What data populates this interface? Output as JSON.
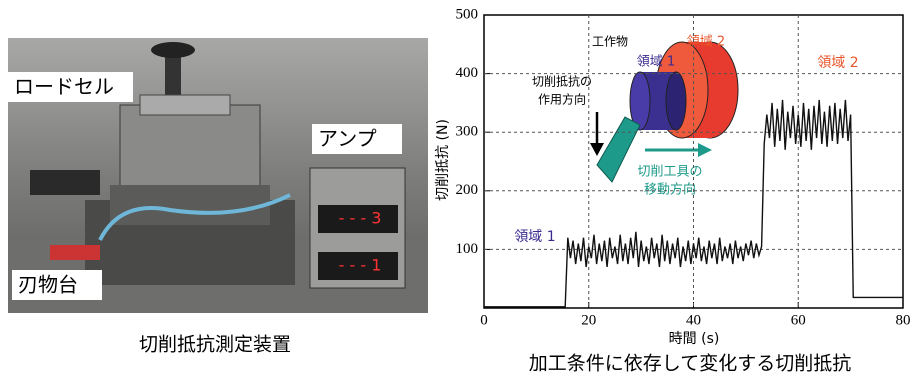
{
  "photo_panel": {
    "labels": [
      "ロードセル",
      "アンプ",
      "刃物台"
    ],
    "caption": "切削抵抗測定装置"
  },
  "chart_data": {
    "type": "line",
    "x_label": "時間 (s)",
    "y_label": "切削抵抗 (N)",
    "caption": "加工条件に依存して変化する切削抵抗",
    "annotations": [
      "領域 1",
      "領域 2",
      "工作物",
      "領域 1",
      "領域 2",
      "切削抵抗の",
      "作用方向",
      "切削工具の",
      "移動方向"
    ],
    "xlim": [
      0,
      80
    ],
    "xticks": [
      0,
      20,
      40,
      60,
      80
    ],
    "ylim": [
      0,
      500
    ],
    "yticks": [
      100,
      200,
      300,
      400,
      500
    ],
    "grid": true,
    "x": [
      0,
      15.5,
      16,
      16.5,
      17,
      17.5,
      18,
      18.5,
      19,
      19.5,
      20,
      20.5,
      21,
      21.5,
      22,
      22.5,
      23,
      23.5,
      24,
      24.5,
      25,
      25.5,
      26,
      26.5,
      27,
      27.5,
      28,
      28.5,
      29,
      29.5,
      30,
      30.5,
      31,
      31.5,
      32,
      32.5,
      33,
      33.5,
      34,
      34.5,
      35,
      35.5,
      36,
      36.5,
      37,
      37.5,
      38,
      38.5,
      39,
      39.5,
      40,
      40.5,
      41,
      41.5,
      42,
      42.5,
      43,
      43.5,
      44,
      44.5,
      45,
      45.5,
      46,
      46.5,
      47,
      47.5,
      48,
      48.5,
      49,
      49.5,
      50,
      50.5,
      51,
      51.5,
      52,
      52.5,
      53,
      53.5,
      54,
      54.5,
      55,
      55.5,
      56,
      56.5,
      57,
      57.5,
      58,
      58.5,
      59,
      59.5,
      60,
      60.5,
      61,
      61.5,
      62,
      62.5,
      63,
      63.5,
      64,
      64.5,
      65,
      65.5,
      66,
      66.5,
      67,
      67.5,
      68,
      68.5,
      69,
      69.5,
      70,
      70.5,
      80
    ],
    "series": [
      {
        "color": "#111111",
        "values": [
          2,
          2,
          120,
          85,
          115,
          75,
          110,
          80,
          120,
          70,
          105,
          85,
          125,
          75,
          110,
          80,
          115,
          70,
          120,
          85,
          105,
          75,
          125,
          80,
          110,
          75,
          120,
          85,
          130,
          70,
          115,
          80,
          105,
          75,
          120,
          85,
          110,
          70,
          125,
          80,
          115,
          75,
          110,
          85,
          120,
          70,
          105,
          80,
          115,
          75,
          110,
          85,
          120,
          80,
          105,
          75,
          115,
          85,
          110,
          75,
          120,
          80,
          105,
          85,
          110,
          75,
          115,
          85,
          105,
          80,
          110,
          90,
          115,
          85,
          110,
          90,
          105,
          280,
          330,
          290,
          350,
          275,
          340,
          285,
          355,
          270,
          335,
          290,
          345,
          280,
          330,
          275,
          350,
          285,
          340,
          270,
          345,
          290,
          355,
          280,
          335,
          275,
          345,
          285,
          350,
          280,
          340,
          290,
          355,
          285,
          330,
          18,
          18
        ]
      }
    ]
  }
}
